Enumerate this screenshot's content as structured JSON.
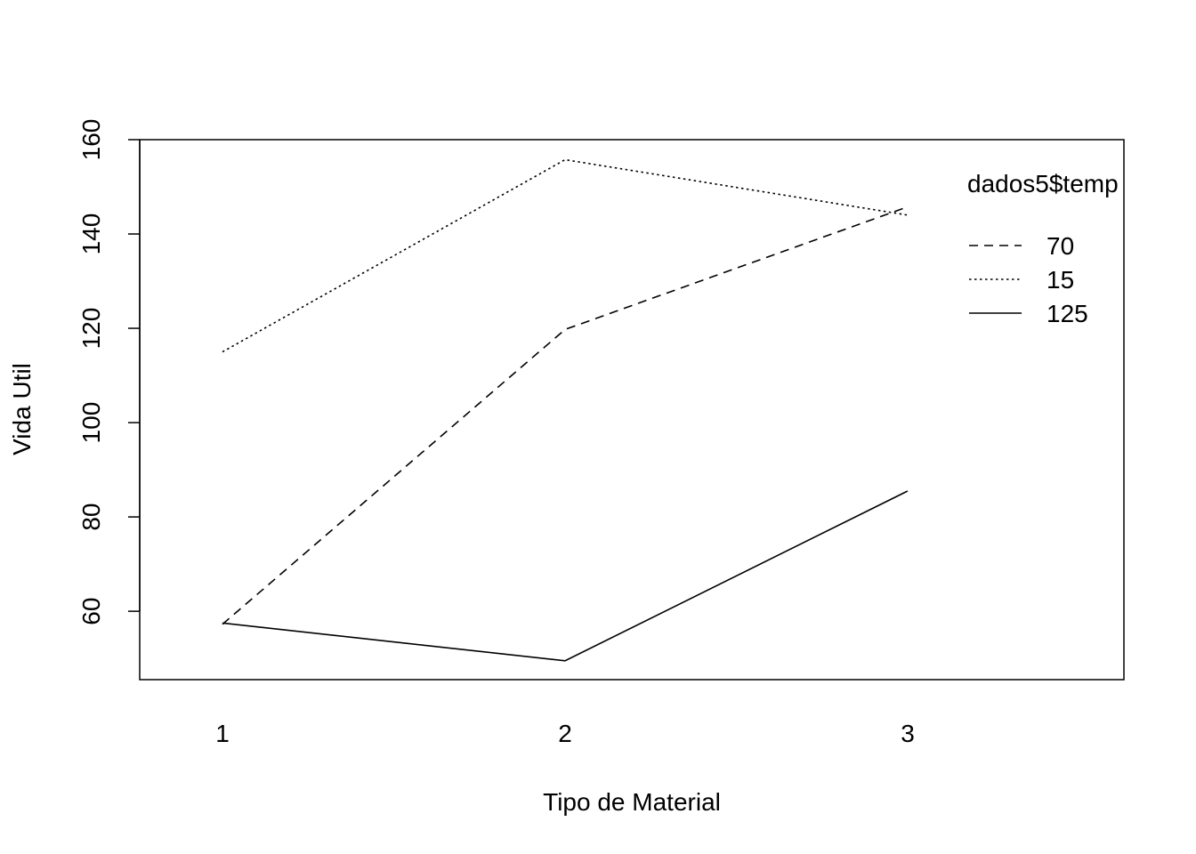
{
  "chart_data": {
    "type": "line",
    "title": "",
    "xlabel": "Tipo de Material",
    "ylabel": "Vida Util",
    "categories": [
      "1",
      "2",
      "3"
    ],
    "yticks": [
      60,
      80,
      100,
      120,
      140,
      160
    ],
    "ylim": [
      45.5,
      160
    ],
    "grid": false,
    "legend": {
      "title": "dados5$temp",
      "position": "top-right"
    },
    "series": [
      {
        "name": "70",
        "line_style": "dashed",
        "values": [
          57.25,
          119.75,
          145.75
        ]
      },
      {
        "name": "15",
        "line_style": "dotted",
        "values": [
          115,
          155.75,
          144.0
        ]
      },
      {
        "name": "125",
        "line_style": "solid",
        "values": [
          57.5,
          49.5,
          85.5
        ]
      }
    ]
  }
}
